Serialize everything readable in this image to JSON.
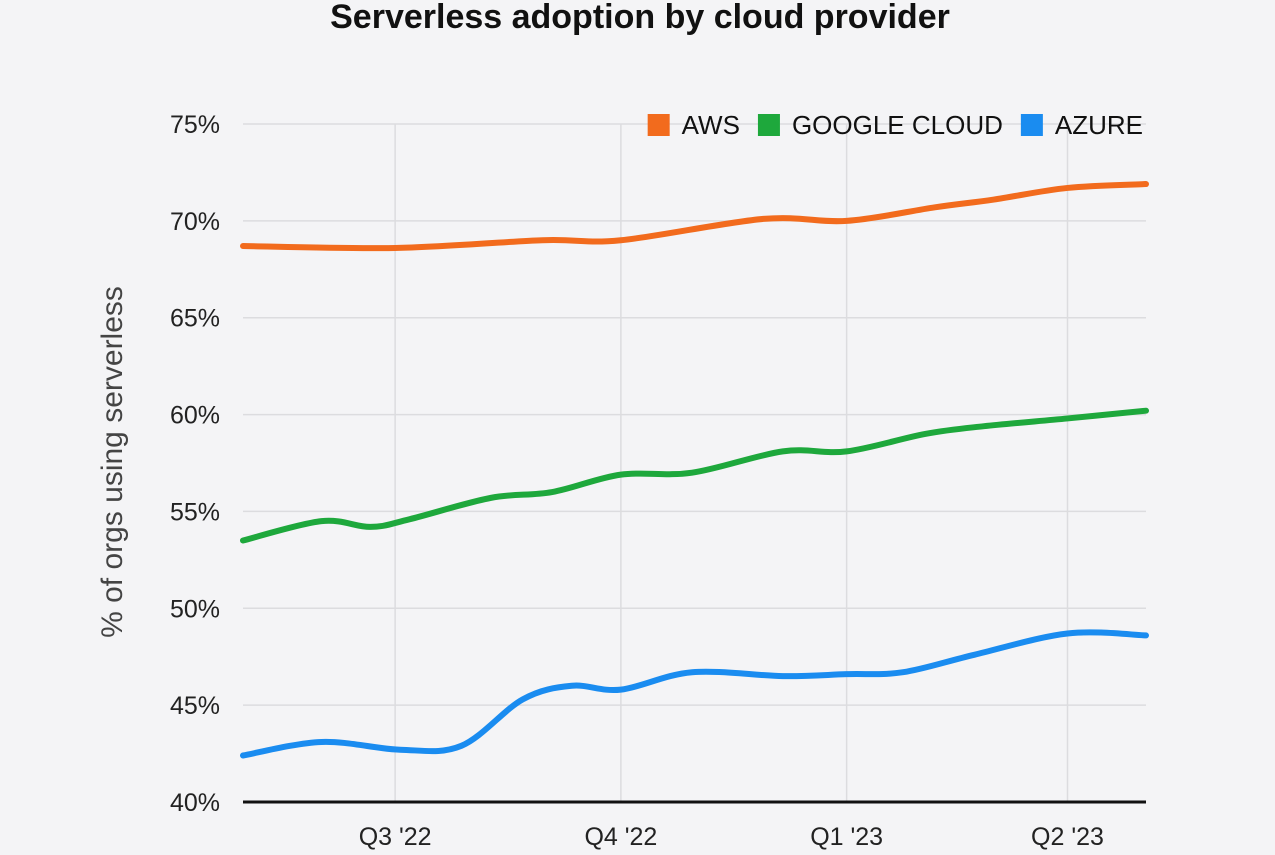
{
  "chart_data": {
    "type": "line",
    "title": "Serverless adoption by cloud provider",
    "xlabel": "",
    "ylabel": "% of orgs using serverless",
    "ylim": [
      40,
      75
    ],
    "xlim": [
      "2022-04-30",
      "2023-05-03"
    ],
    "y_ticks": [
      "40%",
      "45%",
      "50%",
      "55%",
      "60%",
      "65%",
      "70%",
      "75%"
    ],
    "x_ticks": [
      {
        "date": "2022-07-01",
        "label": "Q3 '22"
      },
      {
        "date": "2022-10-01",
        "label": "Q4 '22"
      },
      {
        "date": "2023-01-01",
        "label": "Q1 '23"
      },
      {
        "date": "2023-04-01",
        "label": "Q2 '23"
      }
    ],
    "grid": true,
    "legend_position": "top-right",
    "series": [
      {
        "name": "AWS",
        "color": "#f26b1d",
        "points": [
          [
            "2022-04-30",
            68.7
          ],
          [
            "2022-07-01",
            68.6
          ],
          [
            "2022-08-30",
            69.0
          ],
          [
            "2022-10-01",
            69.0
          ],
          [
            "2022-11-28",
            70.1
          ],
          [
            "2023-01-01",
            70.0
          ],
          [
            "2023-02-06",
            70.7
          ],
          [
            "2023-03-02",
            71.1
          ],
          [
            "2023-04-01",
            71.7
          ],
          [
            "2023-05-03",
            71.9
          ]
        ]
      },
      {
        "name": "GOOGLE CLOUD",
        "color": "#1ea83c",
        "points": [
          [
            "2022-04-30",
            53.5
          ],
          [
            "2022-06-01",
            54.5
          ],
          [
            "2022-06-21",
            54.2
          ],
          [
            "2022-07-07",
            54.6
          ],
          [
            "2022-08-09",
            55.7
          ],
          [
            "2022-09-03",
            56.0
          ],
          [
            "2022-10-01",
            56.9
          ],
          [
            "2022-10-30",
            57.0
          ],
          [
            "2022-12-06",
            58.1
          ],
          [
            "2023-01-01",
            58.1
          ],
          [
            "2023-02-02",
            59.0
          ],
          [
            "2023-02-26",
            59.4
          ],
          [
            "2023-04-01",
            59.8
          ],
          [
            "2023-05-03",
            60.2
          ]
        ]
      },
      {
        "name": "AZURE",
        "color": "#1a8cf0",
        "points": [
          [
            "2022-04-30",
            42.4
          ],
          [
            "2022-06-01",
            43.1
          ],
          [
            "2022-07-03",
            42.7
          ],
          [
            "2022-07-28",
            42.9
          ],
          [
            "2022-08-22",
            45.3
          ],
          [
            "2022-09-11",
            46.0
          ],
          [
            "2022-10-01",
            45.8
          ],
          [
            "2022-10-30",
            46.7
          ],
          [
            "2022-12-06",
            46.5
          ],
          [
            "2023-01-01",
            46.6
          ],
          [
            "2023-01-24",
            46.7
          ],
          [
            "2023-02-22",
            47.6
          ],
          [
            "2023-04-01",
            48.7
          ],
          [
            "2023-05-03",
            48.6
          ]
        ]
      }
    ]
  }
}
